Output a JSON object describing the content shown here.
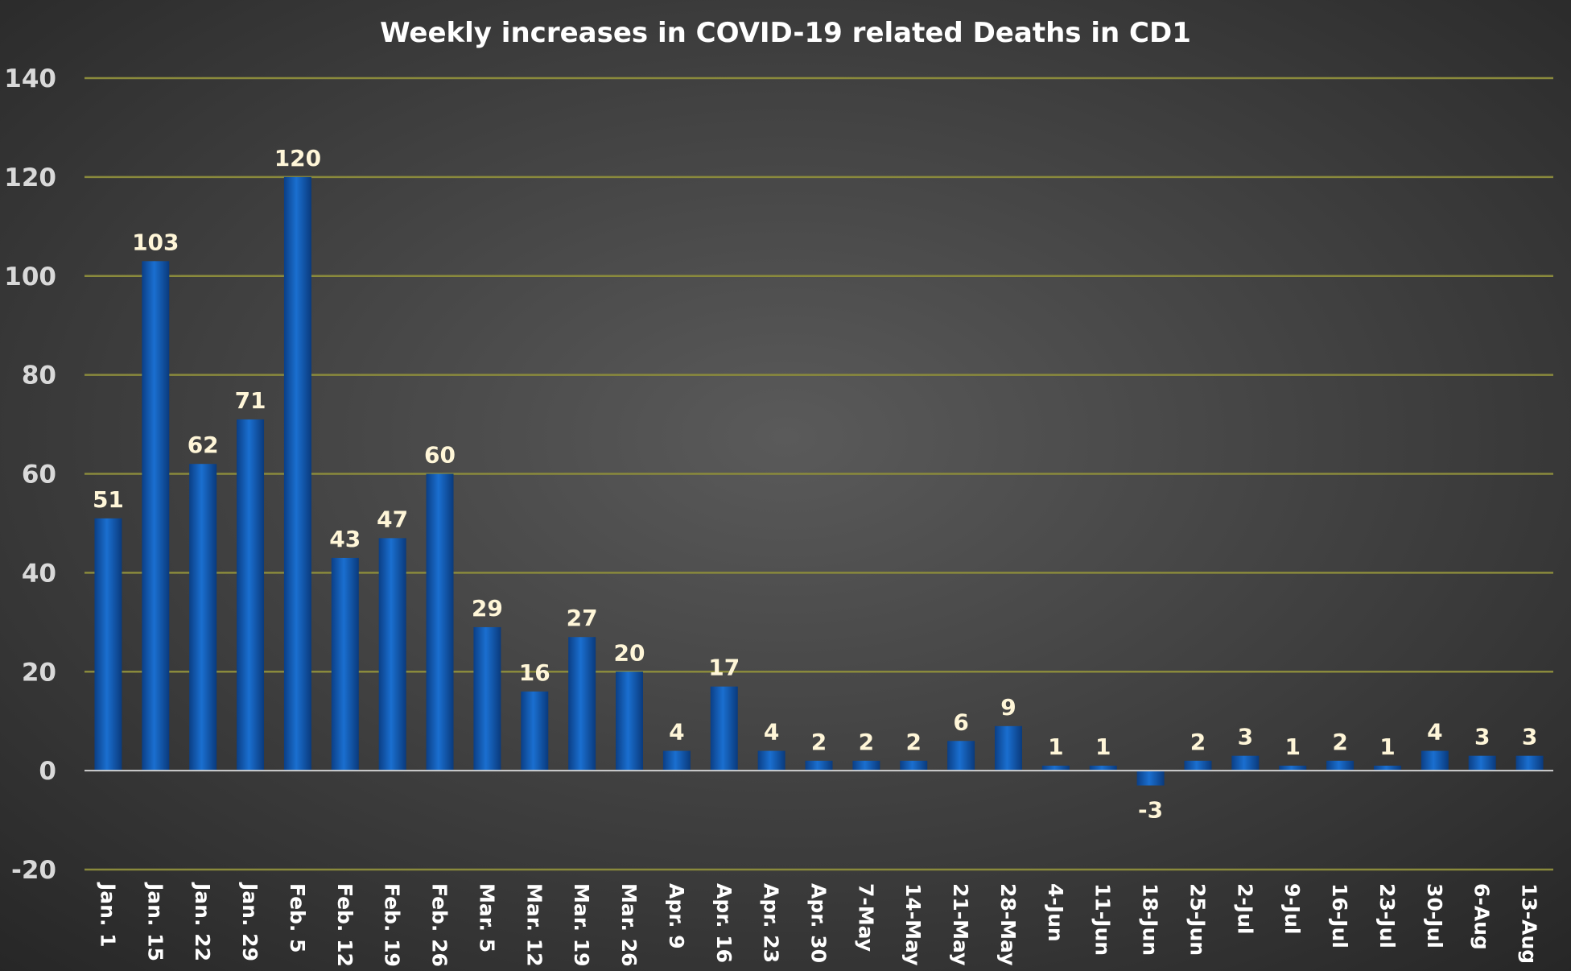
{
  "chart_data": {
    "type": "bar",
    "title": "Weekly increases in COVID-19 related Deaths in CD1",
    "xlabel": "",
    "ylabel": "",
    "ylim": [
      -20,
      140
    ],
    "yticks": [
      "140",
      "120",
      "100",
      "80",
      "60",
      "40",
      "20",
      "0",
      "-20"
    ],
    "grid": true,
    "legend": "none",
    "categories": [
      "Jan. 1",
      "Jan. 15",
      "Jan. 22",
      "Jan. 29",
      "Feb. 5",
      "Feb. 12",
      "Feb. 19",
      "Feb. 26",
      "Mar. 5",
      "Mar. 12",
      "Mar. 19",
      "Mar. 26",
      "Apr. 9",
      "Apr. 16",
      "Apr. 23",
      "Apr. 30",
      "7-May",
      "14-May",
      "21-May",
      "28-May",
      "4-Jun",
      "11-Jun",
      "18-Jun",
      "25-Jun",
      "2-Jul",
      "9-Jul",
      "16-Jul",
      "23-Jul",
      "30-Jul",
      "6-Aug",
      "13-Aug"
    ],
    "values": [
      51,
      103,
      62,
      71,
      120,
      43,
      47,
      60,
      29,
      16,
      27,
      20,
      4,
      17,
      4,
      2,
      2,
      2,
      6,
      9,
      1,
      1,
      -3,
      2,
      3,
      1,
      2,
      1,
      4,
      3,
      3
    ],
    "data_labels": [
      "51",
      "103",
      "62",
      "71",
      "120",
      "43",
      "47",
      "60",
      "29",
      "16",
      "27",
      "20",
      "4",
      "17",
      "4",
      "2",
      "2",
      "2",
      "6",
      "9",
      "1",
      "1",
      "-3",
      "2",
      "3",
      "1",
      "2",
      "1",
      "4",
      "3",
      "3"
    ]
  },
  "colors": {
    "background_center": "#5a5a5a",
    "background_edge": "#262626",
    "bar_light": "#1a6fd0",
    "bar_dark": "#0b3f86",
    "gridline": "#8a8a3c",
    "title": "#ffffff",
    "data_label": "#fff6d8"
  }
}
